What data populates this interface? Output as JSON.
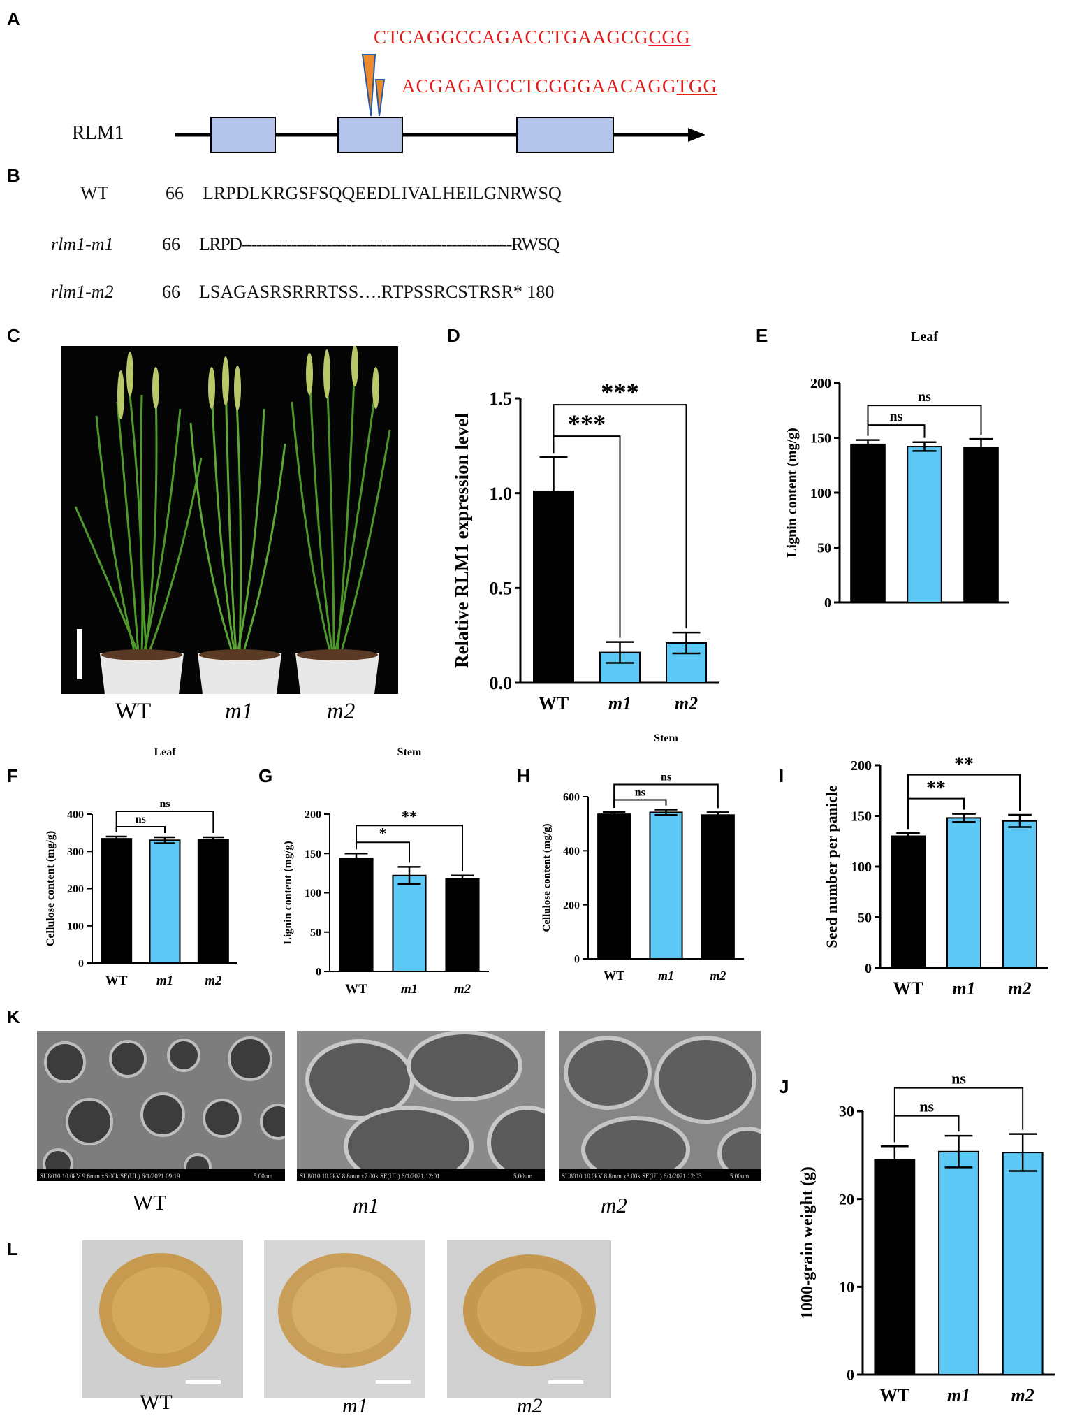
{
  "panels": {
    "A": "A",
    "B": "B",
    "C": "C",
    "D": "D",
    "E": "E",
    "F": "F",
    "G": "G",
    "H": "H",
    "I": "I",
    "J": "J",
    "K": "K",
    "L": "L"
  },
  "panelA": {
    "gene": "RLM1",
    "seq1_main": "CTCAGGCCAGACCTGAAGCG",
    "seq1_pam": "CGG",
    "seq2_main": "ACGAGATCCTCGGGAACAGG",
    "seq2_pam": "TGG",
    "colors": {
      "seq": "#e31b1b",
      "exon": "#b4c3ea",
      "marker_orange": "#ef8a2b",
      "marker_blue": "#2b58a6"
    }
  },
  "panelB": {
    "rows": [
      {
        "name": "WT",
        "pos": "66",
        "seq": "LRPDLKRGSFSQQEEDLIVALHEILGNRWSQ",
        "italic": false
      },
      {
        "name": "rlm1-m1",
        "pos": "66",
        "seq": "LRPD------------------------------------------------------RWSQ",
        "italic": true
      },
      {
        "name": "rlm1-m2",
        "pos": "66",
        "seq": "LSAGASRSRRRTSS….RTPSSRCSTRSR* 180",
        "italic": true
      }
    ]
  },
  "panelC": {
    "labels": [
      "WT",
      "m1",
      "m2"
    ]
  },
  "panelK": {
    "labels": [
      "WT",
      "m1",
      "m2"
    ],
    "scale_info": [
      "SU8010 10.0kV 9.6mm x6.00k SE(UL) 6/1/2021 09:19",
      "SU8010 10.0kV 8.8mm x7.00k SE(UL) 6/1/2021 12:01",
      "SU8010 10.0kV 8.8mm x8.00k SE(UL) 6/1/2021 12:03"
    ],
    "scale_bar": "5.00um"
  },
  "panelL": {
    "labels": [
      "WT",
      "m1",
      "m2"
    ]
  },
  "colors": {
    "black_bar": "#000000",
    "blue_bar": "#5bc8f5"
  },
  "chart_data": [
    {
      "id": "D",
      "type": "bar",
      "title": "",
      "ylabel": "Relative RLM1 expression level",
      "categories": [
        "WT",
        "m1",
        "m2"
      ],
      "values": [
        1.01,
        0.16,
        0.21
      ],
      "errors": [
        0.18,
        0.055,
        0.055
      ],
      "colors": [
        "#000000",
        "#5bc8f5",
        "#5bc8f5"
      ],
      "ylim": [
        0,
        1.5
      ],
      "yticks": [
        0.0,
        0.5,
        1.0,
        1.5
      ],
      "tick_decimals": 1,
      "sig": [
        {
          "from": 0,
          "to": 1,
          "label": "***",
          "level": 0
        },
        {
          "from": 0,
          "to": 2,
          "label": "***",
          "level": 1
        }
      ]
    },
    {
      "id": "E",
      "type": "bar",
      "title": "Leaf",
      "ylabel": "Lignin content (mg/g)",
      "categories": [
        "WT",
        "m1",
        "m2"
      ],
      "values": [
        144,
        142,
        141
      ],
      "errors": [
        4,
        4,
        8
      ],
      "colors": [
        "#000000",
        "#5bc8f5",
        "#000000"
      ],
      "ylim": [
        0,
        200
      ],
      "yticks": [
        0,
        50,
        100,
        150,
        200
      ],
      "tick_decimals": 0,
      "sig": [
        {
          "from": 0,
          "to": 1,
          "label": "ns",
          "level": 0
        },
        {
          "from": 0,
          "to": 2,
          "label": "ns",
          "level": 1
        }
      ]
    },
    {
      "id": "F",
      "type": "bar",
      "title": "Leaf",
      "ylabel": "Cellulose content (mg/g)",
      "categories": [
        "WT",
        "m1",
        "m2"
      ],
      "values": [
        334,
        330,
        332
      ],
      "errors": [
        6,
        8,
        6
      ],
      "colors": [
        "#000000",
        "#5bc8f5",
        "#000000"
      ],
      "ylim": [
        0,
        400
      ],
      "yticks": [
        0,
        100,
        200,
        300,
        400
      ],
      "tick_decimals": 0,
      "sig": [
        {
          "from": 0,
          "to": 1,
          "label": "ns",
          "level": 0
        },
        {
          "from": 0,
          "to": 2,
          "label": "ns",
          "level": 1
        }
      ]
    },
    {
      "id": "G",
      "type": "bar",
      "title": "Stem",
      "ylabel": "Lignin content (mg/g)",
      "categories": [
        "WT",
        "m1",
        "m2"
      ],
      "values": [
        144,
        122,
        118
      ],
      "errors": [
        6,
        11,
        4
      ],
      "colors": [
        "#000000",
        "#5bc8f5",
        "#000000"
      ],
      "ylim": [
        0,
        200
      ],
      "yticks": [
        0,
        50,
        100,
        150,
        200
      ],
      "tick_decimals": 0,
      "sig": [
        {
          "from": 0,
          "to": 1,
          "label": "*",
          "level": 0
        },
        {
          "from": 0,
          "to": 2,
          "label": "**",
          "level": 1
        }
      ]
    },
    {
      "id": "H",
      "type": "bar",
      "title": "Stem",
      "ylabel": "Cellulose content (mg/g)",
      "categories": [
        "WT",
        "m1",
        "m2"
      ],
      "values": [
        535,
        542,
        532
      ],
      "errors": [
        8,
        10,
        10
      ],
      "colors": [
        "#000000",
        "#5bc8f5",
        "#000000"
      ],
      "ylim": [
        0,
        600
      ],
      "yticks": [
        0,
        200,
        400,
        600
      ],
      "tick_decimals": 0,
      "sig": [
        {
          "from": 0,
          "to": 1,
          "label": "ns",
          "level": 0
        },
        {
          "from": 0,
          "to": 2,
          "label": "ns",
          "level": 1
        }
      ]
    },
    {
      "id": "I",
      "type": "bar",
      "title": "",
      "ylabel": "Seed number per panicle",
      "categories": [
        "WT",
        "m1",
        "m2"
      ],
      "values": [
        130,
        148,
        145
      ],
      "errors": [
        3,
        4,
        6
      ],
      "colors": [
        "#000000",
        "#5bc8f5",
        "#5bc8f5"
      ],
      "ylim": [
        0,
        200
      ],
      "yticks": [
        0,
        50,
        100,
        150,
        200
      ],
      "tick_decimals": 0,
      "sig": [
        {
          "from": 0,
          "to": 1,
          "label": "**",
          "level": 0
        },
        {
          "from": 0,
          "to": 2,
          "label": "**",
          "level": 1
        }
      ]
    },
    {
      "id": "J",
      "type": "bar",
      "title": "",
      "ylabel": "1000-grain weight (g)",
      "categories": [
        "WT",
        "m1",
        "m2"
      ],
      "values": [
        24.5,
        25.4,
        25.3
      ],
      "errors": [
        1.5,
        1.8,
        2.1
      ],
      "colors": [
        "#000000",
        "#5bc8f5",
        "#5bc8f5"
      ],
      "ylim": [
        0,
        30
      ],
      "yticks": [
        0,
        10,
        20,
        30
      ],
      "tick_decimals": 0,
      "sig": [
        {
          "from": 0,
          "to": 1,
          "label": "ns",
          "level": 0
        },
        {
          "from": 0,
          "to": 2,
          "label": "ns",
          "level": 1
        }
      ]
    }
  ]
}
